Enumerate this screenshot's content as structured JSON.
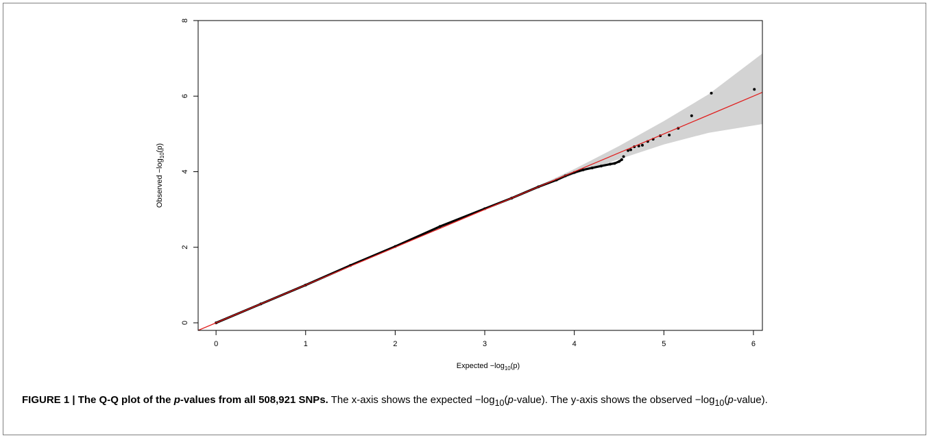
{
  "chart_data": {
    "type": "scatter",
    "xlabel_pre": "Expected  −log",
    "xlabel_sub": "10",
    "xlabel_post": "(p)",
    "ylabel_pre": "Observed  −log",
    "ylabel_sub": "10",
    "ylabel_post": "(p)",
    "xlim": [
      -0.2,
      6.1
    ],
    "ylim": [
      -0.2,
      8.0
    ],
    "x_ticks": [
      0,
      1,
      2,
      3,
      4,
      5,
      6
    ],
    "y_ticks": [
      0,
      2,
      4,
      6,
      8
    ],
    "reference_line": {
      "slope": 1,
      "intercept": 0,
      "color": "#e0201f"
    },
    "confidence_band": {
      "color": "#d3d3d3",
      "points": [
        {
          "x": 3.4,
          "lower": 3.39,
          "upper": 3.41
        },
        {
          "x": 4.0,
          "lower": 3.93,
          "upper": 4.07
        },
        {
          "x": 4.5,
          "lower": 4.33,
          "upper": 4.68
        },
        {
          "x": 5.0,
          "lower": 4.72,
          "upper": 5.34
        },
        {
          "x": 5.5,
          "lower": 5.03,
          "upper": 6.05
        },
        {
          "x": 6.1,
          "lower": 5.26,
          "upper": 7.13
        }
      ]
    },
    "series": [
      {
        "point_color": "#000000",
        "x": [
          0,
          0.5,
          1.0,
          1.5,
          2.0,
          2.5,
          3.0,
          3.3,
          3.6,
          3.8,
          3.9,
          4.0,
          4.1,
          4.2,
          4.3,
          4.4,
          4.45,
          4.5,
          4.53
        ],
        "y": [
          0,
          0.5,
          1.0,
          1.52,
          2.02,
          2.55,
          3.02,
          3.3,
          3.6,
          3.78,
          3.89,
          3.98,
          4.05,
          4.1,
          4.15,
          4.2,
          4.22,
          4.27,
          4.32
        ]
      },
      {
        "point_color": "#000000",
        "x": [
          4.55,
          4.6,
          4.63,
          4.67,
          4.72,
          4.76,
          4.82,
          4.88,
          4.96,
          5.06,
          5.16,
          5.31,
          5.53,
          6.01
        ],
        "y": [
          4.4,
          4.56,
          4.58,
          4.66,
          4.68,
          4.7,
          4.8,
          4.86,
          4.95,
          4.97,
          5.15,
          5.48,
          6.08,
          6.18
        ]
      }
    ]
  },
  "caption": {
    "figure_label": "FIGURE 1 | The Q-Q plot of the ",
    "figure_italic": "p",
    "figure_rest": "-values from all 508,921 SNPs.",
    "text_1": " The x-axis shows the expected −log",
    "text_1_sub": "10",
    "text_1_paren": "(",
    "text_1_italic": "p",
    "text_1_end": "-value). The y-axis shows the observed −log",
    "text_2_sub": "10",
    "text_2_paren": "(",
    "text_2_italic": "p",
    "text_2_end": "-value)."
  }
}
